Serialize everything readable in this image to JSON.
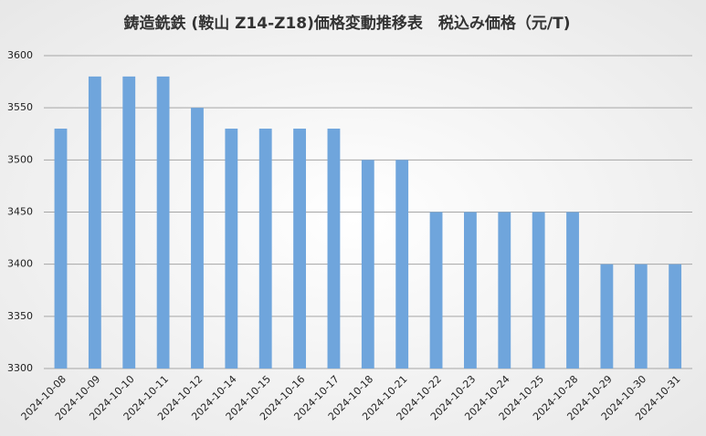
{
  "chart_data": {
    "type": "bar",
    "title": "鋳造銑鉄 (鞍山 Z14-Z18)価格変動推移表　税込み価格（元/T)",
    "categories": [
      "2024-10-08",
      "2024-10-09",
      "2024-10-10",
      "2024-10-11",
      "2024-10-12",
      "2024-10-14",
      "2024-10-15",
      "2024-10-16",
      "2024-10-17",
      "2024-10-18",
      "2024-10-21",
      "2024-10-22",
      "2024-10-23",
      "2024-10-24",
      "2024-10-25",
      "2024-10-28",
      "2024-10-29",
      "2024-10-30",
      "2024-10-31"
    ],
    "values": [
      3530,
      3580,
      3580,
      3580,
      3550,
      3530,
      3530,
      3530,
      3530,
      3500,
      3500,
      3450,
      3450,
      3450,
      3450,
      3450,
      3400,
      3400,
      3400
    ],
    "color": "#6fa5dc",
    "ylim": [
      3300,
      3600
    ],
    "yticks": [
      3300,
      3350,
      3400,
      3450,
      3500,
      3550,
      3600
    ],
    "grid": true
  }
}
